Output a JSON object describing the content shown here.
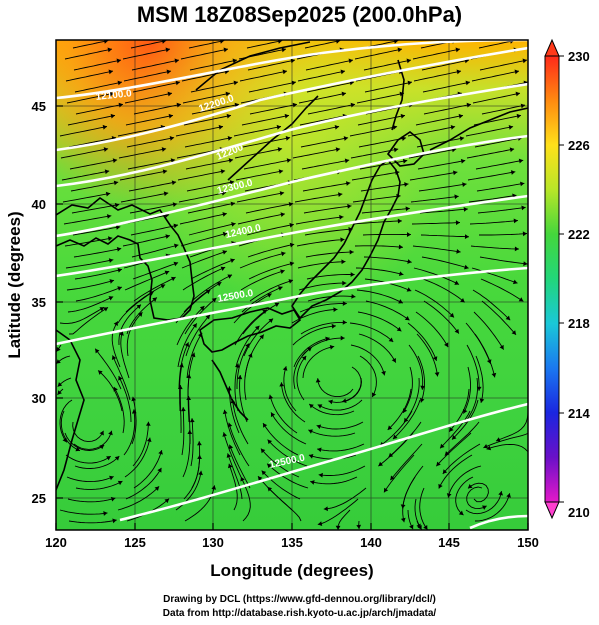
{
  "title": "MSM 18Z08Sep2025 (200.0hPa)",
  "axes": {
    "xlabel": "Longitude (degrees)",
    "ylabel": "Latitude  (degrees)",
    "x_ticks": [
      "120",
      "125",
      "130",
      "135",
      "140",
      "145",
      "150"
    ],
    "y_ticks": [
      "25",
      "30",
      "35",
      "40",
      "45"
    ]
  },
  "colorbar": {
    "ticks": [
      "230",
      "226",
      "222",
      "218",
      "214",
      "210"
    ],
    "range": [
      210,
      230
    ]
  },
  "contours": [
    {
      "label": "12100.0"
    },
    {
      "label": "12200.0"
    },
    {
      "label": "12200"
    },
    {
      "label": "12300.0"
    },
    {
      "label": "12400.0"
    },
    {
      "label": "12500.0"
    },
    {
      "label": "12500.0"
    }
  ],
  "footer": {
    "line1": "Drawing by DCL (https://www.gfd-dennou.org/library/dcl/)",
    "line2": "Data from http://database.rish.kyoto-u.ac.jp/arch/jmadata/"
  }
}
